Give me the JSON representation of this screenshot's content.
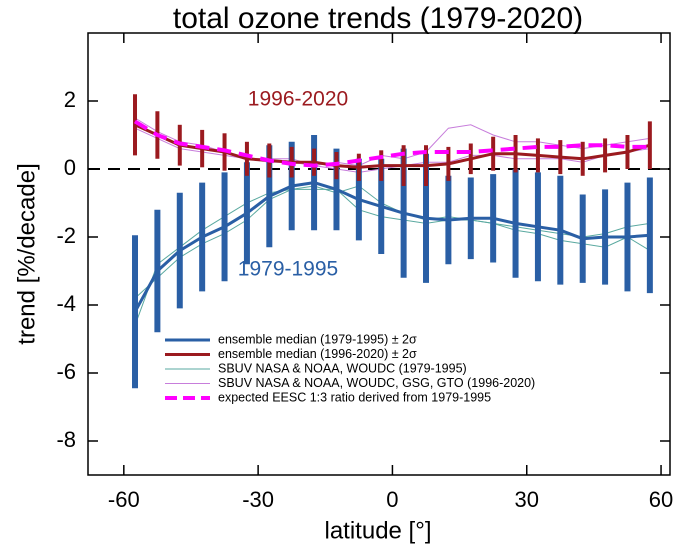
{
  "chart_data": {
    "type": "line",
    "title": "total ozone trends (1979-2020)",
    "x_label": "latitude [°]",
    "y_label": "trend [%/decade]",
    "x": [
      -57.5,
      -52.5,
      -47.5,
      -42.5,
      -37.5,
      -32.5,
      -27.5,
      -22.5,
      -17.5,
      -12.5,
      -7.5,
      -2.5,
      2.5,
      7.5,
      12.5,
      17.5,
      22.5,
      27.5,
      32.5,
      37.5,
      42.5,
      47.5,
      52.5,
      57.5
    ],
    "xlim": [
      -68,
      62
    ],
    "xticks": [
      -60,
      -30,
      0,
      30,
      60
    ],
    "ylim": [
      -9,
      4
    ],
    "yticks": [
      -8,
      -6,
      -4,
      -2,
      0,
      2
    ],
    "hline": 0,
    "annotations": [
      "1996-2020",
      "1979-1995"
    ],
    "series": [
      {
        "name": "SBUV NASA & NOAA, WOUDC (1979-1995)",
        "color": "#5aa9a0",
        "style": "thin",
        "lines": [
          [
            -4.6,
            -2.8,
            -2.3,
            -1.8,
            -1.4,
            -1.0,
            -0.7,
            -0.6,
            -0.5,
            -0.7,
            -0.5,
            -1.0,
            -1.3,
            -1.5,
            -1.4,
            -1.5,
            -1.6,
            -1.7,
            -1.8,
            -1.9,
            -2.0,
            -1.9,
            -1.7,
            -1.6
          ],
          [
            -3.8,
            -3.2,
            -2.6,
            -2.2,
            -1.9,
            -1.5,
            -0.9,
            -0.6,
            -0.6,
            -0.6,
            -1.2,
            -1.4,
            -1.5,
            -1.6,
            -1.5,
            -1.5,
            -1.6,
            -1.8,
            -1.9,
            -2.1,
            -2.2,
            -2.3,
            -2.0,
            -2.4
          ]
        ]
      },
      {
        "name": "SBUV NASA & NOAA, WOUDC, GSG, GTO (1996-2020)",
        "color": "#c77ddb",
        "style": "thin",
        "lines": [
          [
            1.5,
            1.1,
            0.8,
            0.7,
            0.5,
            0.3,
            0.3,
            0.3,
            0.1,
            0.2,
            0.1,
            0.4,
            0.3,
            0.5,
            1.2,
            1.3,
            1.0,
            0.8,
            0.8,
            0.7,
            0.6,
            0.7,
            0.8,
            0.9
          ],
          [
            1.2,
            0.9,
            0.6,
            0.5,
            0.4,
            0.3,
            0.2,
            0.2,
            0.1,
            0.0,
            -0.1,
            0.0,
            0.1,
            0.2,
            0.2,
            0.4,
            0.4,
            0.3,
            0.3,
            0.3,
            0.2,
            0.4,
            0.5,
            0.6
          ]
        ]
      },
      {
        "name": "ensemble median (1979-1995) ± 2σ",
        "color": "#2a5fa5",
        "style": "median",
        "values": [
          -4.2,
          -3.0,
          -2.4,
          -2.0,
          -1.7,
          -1.3,
          -0.8,
          -0.5,
          -0.4,
          -0.6,
          -0.9,
          -1.1,
          -1.3,
          -1.45,
          -1.5,
          -1.45,
          -1.45,
          -1.6,
          -1.7,
          -1.8,
          -2.05,
          -2.0,
          -2.0,
          -1.95
        ],
        "errors": [
          2.25,
          1.8,
          1.7,
          1.6,
          1.6,
          1.5,
          1.5,
          1.3,
          1.4,
          1.2,
          1.2,
          1.4,
          1.9,
          1.9,
          1.3,
          1.2,
          1.3,
          1.6,
          1.6,
          1.6,
          1.3,
          1.4,
          1.6,
          1.7
        ]
      },
      {
        "name": "ensemble median (1996-2020) ± 2σ",
        "color": "#9b1a1f",
        "style": "median",
        "values": [
          1.3,
          1.0,
          0.7,
          0.6,
          0.5,
          0.3,
          0.25,
          0.2,
          0.2,
          0.1,
          0.05,
          0.1,
          0.1,
          0.1,
          0.15,
          0.3,
          0.45,
          0.45,
          0.4,
          0.35,
          0.3,
          0.4,
          0.5,
          0.7
        ],
        "errors": [
          0.9,
          0.7,
          0.6,
          0.55,
          0.55,
          0.5,
          0.5,
          0.45,
          0.4,
          0.4,
          0.4,
          0.45,
          0.6,
          0.6,
          0.5,
          0.45,
          0.5,
          0.55,
          0.5,
          0.5,
          0.5,
          0.5,
          0.5,
          0.7
        ]
      },
      {
        "name": "expected EESC 1:3 ratio derived from 1979-1995",
        "color": "#ff00ff",
        "style": "dashed",
        "values": [
          1.4,
          1.0,
          0.75,
          0.65,
          0.55,
          0.4,
          0.25,
          0.15,
          0.1,
          0.15,
          0.25,
          0.35,
          0.45,
          0.5,
          0.5,
          0.5,
          0.55,
          0.6,
          0.65,
          0.65,
          0.7,
          0.7,
          0.65,
          0.65
        ]
      }
    ],
    "legend_order": [
      2,
      3,
      0,
      1,
      4
    ]
  }
}
